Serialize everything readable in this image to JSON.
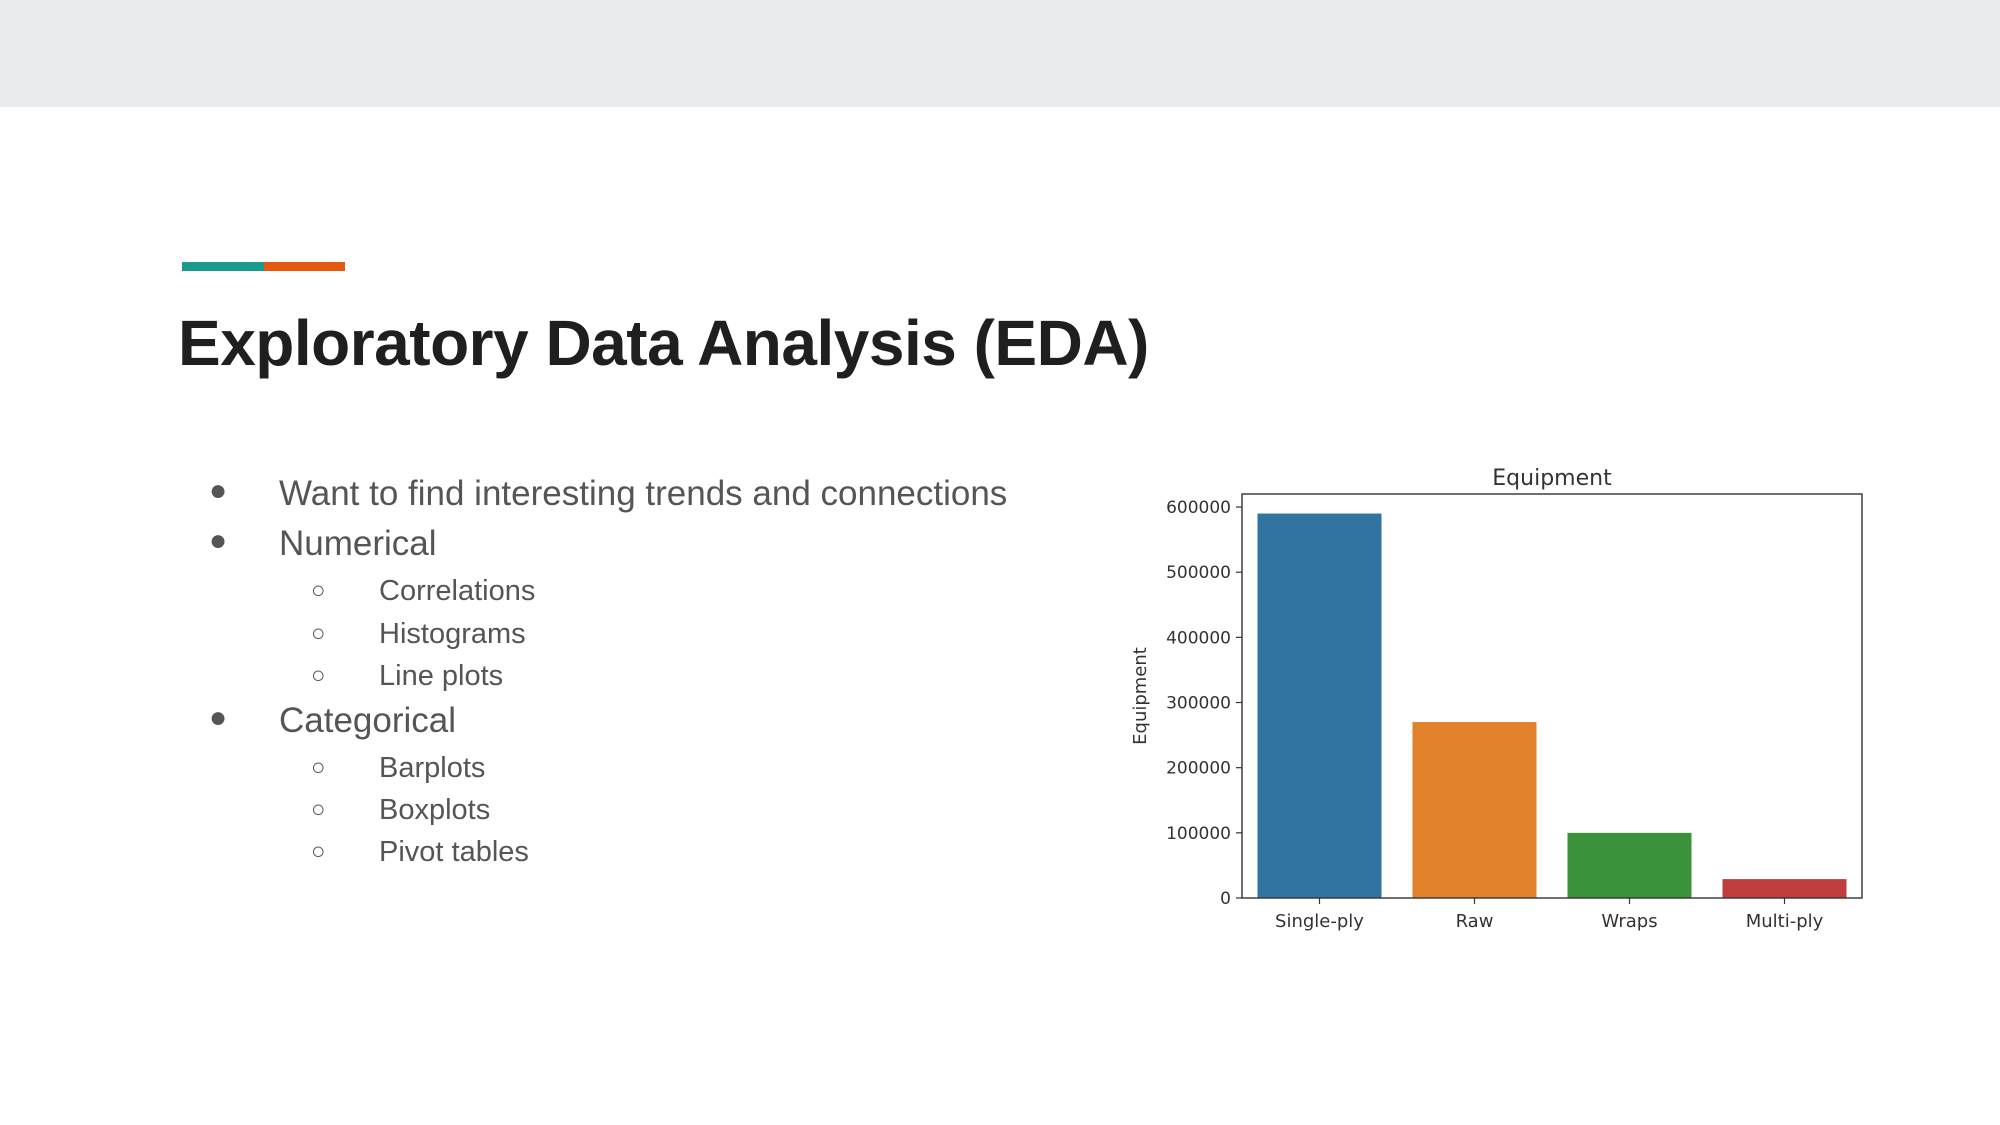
{
  "slide": {
    "title": "Exploratory Data Analysis (EDA)",
    "accent_colors": [
      "#1a9a8c",
      "#e4580f"
    ],
    "bullets": [
      {
        "text": "Want to find interesting trends and connections",
        "level": 1,
        "marker": "●"
      },
      {
        "text": "Numerical",
        "level": 1,
        "marker": "●"
      },
      {
        "text": "Correlations",
        "level": 2,
        "marker": "○"
      },
      {
        "text": "Histograms",
        "level": 2,
        "marker": "○"
      },
      {
        "text": "Line plots",
        "level": 2,
        "marker": "○"
      },
      {
        "text": "Categorical",
        "level": 1,
        "marker": "●"
      },
      {
        "text": "Barplots",
        "level": 2,
        "marker": "○"
      },
      {
        "text": "Boxplots",
        "level": 2,
        "marker": "○"
      },
      {
        "text": "Pivot tables",
        "level": 2,
        "marker": "○"
      }
    ]
  },
  "chart_data": {
    "type": "bar",
    "title": "Equipment",
    "xlabel": "",
    "ylabel": "Equipment",
    "categories": [
      "Single-ply",
      "Raw",
      "Wraps",
      "Multi-ply"
    ],
    "values": [
      590000,
      270000,
      100000,
      29000
    ],
    "colors": [
      "#3274a1",
      "#e1812c",
      "#3a923a",
      "#c03d3e"
    ],
    "ylim": [
      0,
      620000
    ],
    "yticks": [
      0,
      100000,
      200000,
      300000,
      400000,
      500000,
      600000
    ],
    "ytick_labels": [
      "0",
      "100000",
      "200000",
      "300000",
      "400000",
      "500000",
      "600000"
    ],
    "grid": false
  }
}
